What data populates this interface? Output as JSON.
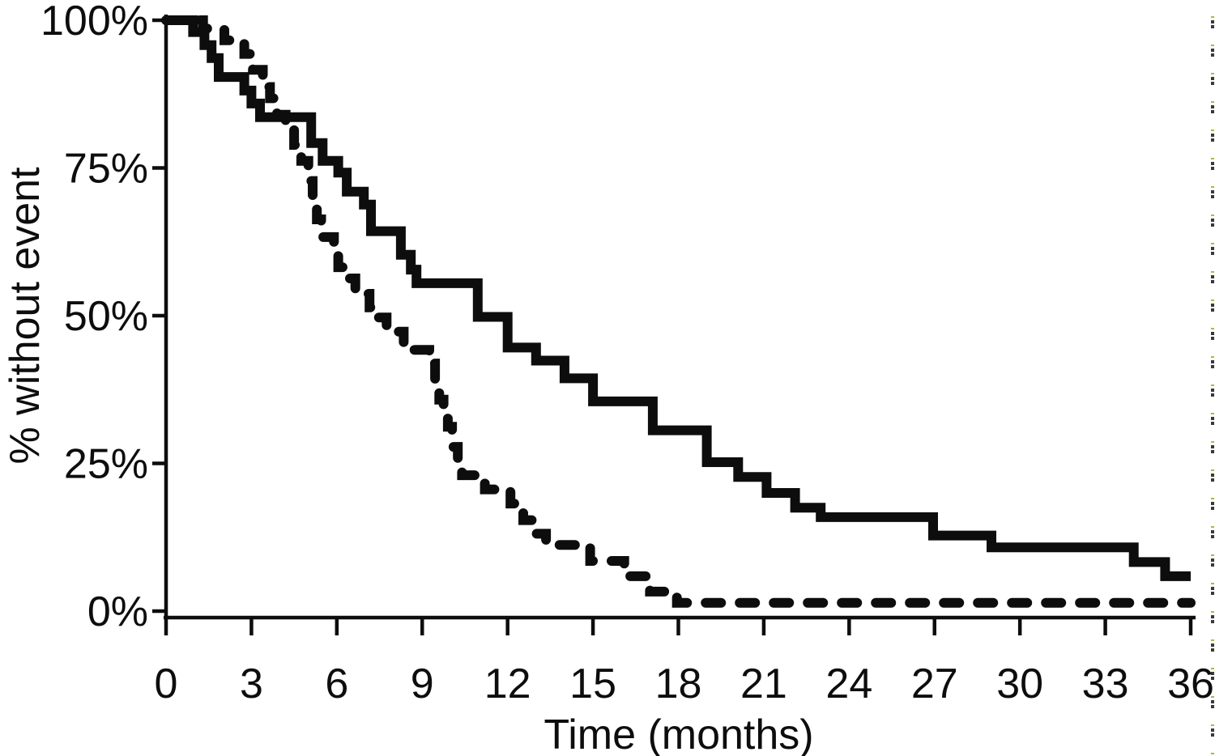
{
  "figure": {
    "background": "#ffffff",
    "ink_color": "#0d0d0d"
  },
  "chart_data": {
    "type": "line",
    "subtype": "kaplan-meier-step",
    "title": "",
    "xlabel": "Time (months)",
    "ylabel": "% without event",
    "xlim": [
      0,
      36
    ],
    "ylim": [
      0,
      100
    ],
    "grid": false,
    "legend_position": "none",
    "x_ticks": {
      "values": [
        0,
        3,
        6,
        9,
        12,
        15,
        18,
        21,
        24,
        27,
        30,
        33,
        36
      ],
      "labels": [
        "0",
        "3",
        "6",
        "9",
        "12",
        "15",
        "18",
        "21",
        "24",
        "27",
        "30",
        "33",
        "36"
      ]
    },
    "y_ticks": {
      "values": [
        100,
        75,
        50,
        25,
        0
      ],
      "labels": [
        "100%",
        "75%",
        "50%",
        "25%",
        "0%"
      ]
    },
    "series": [
      {
        "name": "dashed-curve",
        "line_style": "dashed",
        "color": "#0d0d0d",
        "points": [
          [
            0,
            100
          ],
          [
            1.3,
            98.6
          ],
          [
            2.05,
            96.6
          ],
          [
            2.75,
            94.3
          ],
          [
            3.05,
            91.6
          ],
          [
            3.4,
            88.7
          ],
          [
            3.65,
            86.8
          ],
          [
            3.9,
            84.0
          ],
          [
            4.2,
            81.5
          ],
          [
            4.5,
            78.9
          ],
          [
            4.75,
            76.2
          ],
          [
            5.0,
            72.8
          ],
          [
            5.15,
            69.8
          ],
          [
            5.3,
            66.3
          ],
          [
            5.45,
            63.3
          ],
          [
            5.9,
            60.3
          ],
          [
            6.05,
            58.2
          ],
          [
            6.35,
            56.3
          ],
          [
            6.65,
            53.7
          ],
          [
            7.15,
            51.4
          ],
          [
            7.3,
            49.7
          ],
          [
            7.75,
            47.3
          ],
          [
            8.35,
            44.2
          ],
          [
            9.25,
            41.9
          ],
          [
            9.45,
            38.8
          ],
          [
            9.6,
            35.8
          ],
          [
            9.75,
            33.2
          ],
          [
            9.9,
            31.2
          ],
          [
            10.05,
            27.8
          ],
          [
            10.25,
            25.4
          ],
          [
            10.4,
            23.0
          ],
          [
            11.2,
            20.6
          ],
          [
            12.1,
            18.2
          ],
          [
            12.55,
            15.4
          ],
          [
            12.95,
            13.1
          ],
          [
            13.35,
            11.2
          ],
          [
            14.9,
            8.5
          ],
          [
            16.1,
            5.9
          ],
          [
            17.0,
            3.3
          ],
          [
            17.95,
            1.4
          ]
        ],
        "end_x": 36,
        "final_value": 1.4
      },
      {
        "name": "solid-curve",
        "line_style": "solid",
        "color": "#0d0d0d",
        "points": [
          [
            0,
            100
          ],
          [
            0.95,
            98.0
          ],
          [
            1.35,
            95.8
          ],
          [
            1.6,
            93.6
          ],
          [
            1.85,
            90.4
          ],
          [
            2.75,
            88.1
          ],
          [
            3.0,
            85.9
          ],
          [
            3.3,
            83.6
          ],
          [
            5.1,
            79.2
          ],
          [
            5.5,
            76.2
          ],
          [
            6.05,
            74.2
          ],
          [
            6.35,
            71.0
          ],
          [
            6.95,
            68.8
          ],
          [
            7.2,
            64.3
          ],
          [
            8.25,
            60.3
          ],
          [
            8.6,
            57.8
          ],
          [
            8.8,
            55.5
          ],
          [
            10.95,
            49.8
          ],
          [
            12.0,
            44.6
          ],
          [
            13.0,
            42.4
          ],
          [
            14.0,
            39.4
          ],
          [
            15.0,
            35.5
          ],
          [
            17.1,
            30.6
          ],
          [
            19.0,
            25.2
          ],
          [
            20.1,
            22.7
          ],
          [
            21.1,
            20.0
          ],
          [
            22.1,
            17.5
          ],
          [
            23.0,
            15.9
          ],
          [
            26.95,
            12.8
          ],
          [
            29.0,
            10.8
          ],
          [
            34.0,
            8.3
          ],
          [
            35.1,
            5.9
          ]
        ],
        "end_x": 36,
        "final_value": 5.9
      }
    ]
  }
}
